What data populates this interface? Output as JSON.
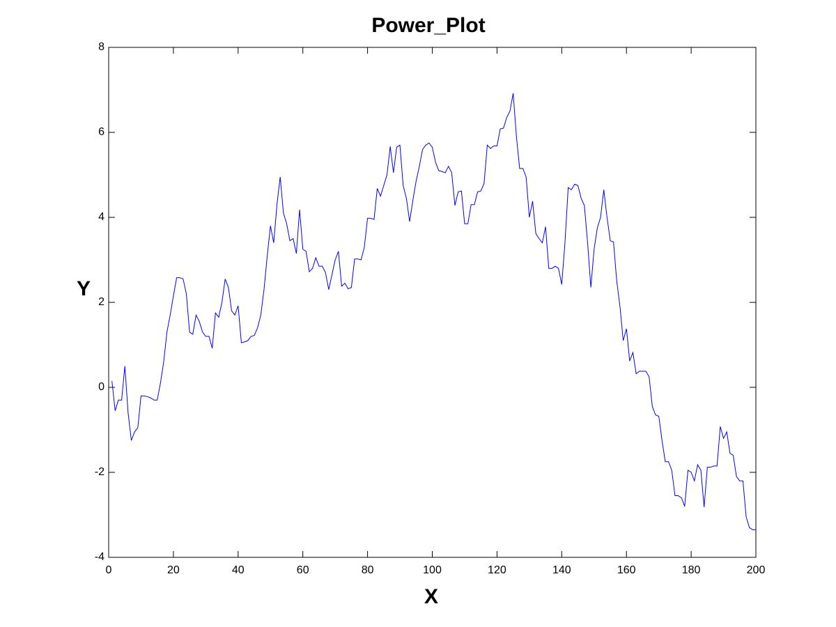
{
  "chart_data": {
    "type": "line",
    "title": "Power_Plot",
    "xlabel": "X",
    "ylabel": "Y",
    "color": "#0000ff",
    "x": [
      1,
      2,
      3,
      4,
      5,
      6,
      7,
      8,
      9,
      10,
      11,
      12,
      13,
      14,
      15,
      16,
      17,
      18,
      19,
      20,
      21,
      22,
      23,
      24,
      25,
      26,
      27,
      28,
      29,
      30,
      31,
      32,
      33,
      34,
      35,
      36,
      37,
      38,
      39,
      40,
      41,
      42,
      43,
      44,
      45,
      46,
      47,
      48,
      49,
      50,
      51,
      52,
      53,
      54,
      55,
      56,
      57,
      58,
      59,
      60,
      61,
      62,
      63,
      64,
      65,
      66,
      67,
      68,
      69,
      70,
      71,
      72,
      73,
      74,
      75,
      76,
      77,
      78,
      79,
      80,
      81,
      82,
      83,
      84,
      85,
      86,
      87,
      88,
      89,
      90,
      91,
      92,
      93,
      94,
      95,
      96,
      97,
      98,
      99,
      100,
      101,
      102,
      103,
      104,
      105,
      106,
      107,
      108,
      109,
      110,
      111,
      112,
      113,
      114,
      115,
      116,
      117,
      118,
      119,
      120,
      121,
      122,
      123,
      124,
      125,
      126,
      127,
      128,
      129,
      130,
      131,
      132,
      133,
      134,
      135,
      136,
      137,
      138,
      139,
      140,
      141,
      142,
      143,
      144,
      145,
      146,
      147,
      148,
      149,
      150,
      151,
      152,
      153,
      154,
      155,
      156,
      157,
      158,
      159,
      160,
      161,
      162,
      163,
      164,
      165,
      166,
      167,
      168,
      169,
      170,
      171,
      172,
      173,
      174,
      175,
      176,
      177,
      178,
      179,
      180,
      181,
      182,
      183,
      184,
      185,
      186,
      187,
      188,
      189,
      190,
      191,
      192,
      193,
      194,
      195,
      196,
      197,
      198,
      199,
      200
    ],
    "values": [
      0.15,
      -0.55,
      -0.3,
      -0.3,
      0.5,
      -0.6,
      -1.25,
      -1.05,
      -0.95,
      -0.2,
      -0.2,
      -0.22,
      -0.25,
      -0.3,
      -0.3,
      0.1,
      0.6,
      1.3,
      1.7,
      2.15,
      2.58,
      2.58,
      2.55,
      2.2,
      1.3,
      1.25,
      1.7,
      1.55,
      1.3,
      1.2,
      1.2,
      0.92,
      1.75,
      1.65,
      2.0,
      2.55,
      2.35,
      1.8,
      1.7,
      1.92,
      1.05,
      1.07,
      1.1,
      1.2,
      1.22,
      1.4,
      1.7,
      2.3,
      3.1,
      3.8,
      3.4,
      4.3,
      4.95,
      4.1,
      3.85,
      3.45,
      3.5,
      3.15,
      4.18,
      3.25,
      3.2,
      2.72,
      2.8,
      3.05,
      2.85,
      2.85,
      2.7,
      2.3,
      2.65,
      3.0,
      3.2,
      2.38,
      2.45,
      2.32,
      2.35,
      3.02,
      3.02,
      3.0,
      3.3,
      3.98,
      3.98,
      3.95,
      4.68,
      4.5,
      4.75,
      5.0,
      5.67,
      5.05,
      5.65,
      5.7,
      4.75,
      4.45,
      3.9,
      4.4,
      4.85,
      5.2,
      5.6,
      5.7,
      5.75,
      5.65,
      5.3,
      5.1,
      5.08,
      5.05,
      5.2,
      5.05,
      4.28,
      4.6,
      4.62,
      3.85,
      3.85,
      4.3,
      4.3,
      4.6,
      4.62,
      4.8,
      5.7,
      5.62,
      5.68,
      5.68,
      6.08,
      6.1,
      6.35,
      6.5,
      6.92,
      5.9,
      5.15,
      5.15,
      4.95,
      4.0,
      4.38,
      3.62,
      3.5,
      3.4,
      3.78,
      2.8,
      2.8,
      2.85,
      2.8,
      2.42,
      3.4,
      4.7,
      4.65,
      4.78,
      4.75,
      4.45,
      4.28,
      3.4,
      2.35,
      3.25,
      3.75,
      4.0,
      4.65,
      4.0,
      3.45,
      3.42,
      2.5,
      1.9,
      1.1,
      1.38,
      0.62,
      0.82,
      0.32,
      0.38,
      0.38,
      0.38,
      0.25,
      -0.45,
      -0.65,
      -0.68,
      -1.25,
      -1.75,
      -1.75,
      -1.95,
      -2.55,
      -2.55,
      -2.6,
      -2.8,
      -1.95,
      -2.0,
      -2.2,
      -1.82,
      -1.95,
      -2.82,
      -1.88,
      -1.88,
      -1.85,
      -1.85,
      -0.92,
      -1.2,
      -1.05,
      -1.55,
      -1.6,
      -2.1,
      -2.2,
      -2.2,
      -3.05,
      -3.3,
      -3.35,
      -3.35
    ],
    "xlim": [
      0,
      200
    ],
    "ylim": [
      -4,
      8
    ],
    "xticks": [
      0,
      20,
      40,
      60,
      80,
      100,
      120,
      140,
      160,
      180,
      200
    ],
    "yticks": [
      -4,
      -2,
      0,
      2,
      4,
      6,
      8
    ]
  }
}
